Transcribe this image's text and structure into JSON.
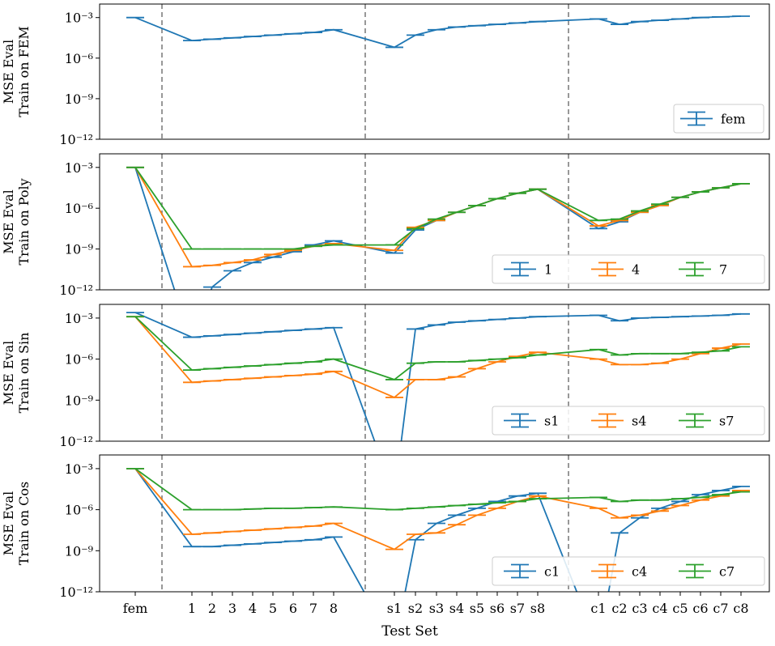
{
  "figure": {
    "xlabel": "Test Set",
    "x_tick_labels": [
      "fem",
      "1",
      "2",
      "3",
      "4",
      "5",
      "6",
      "7",
      "8",
      "s1",
      "s2",
      "s3",
      "s4",
      "s5",
      "s6",
      "s7",
      "s8",
      "c1",
      "c2",
      "c3",
      "c4",
      "c5",
      "c6",
      "c7",
      "c8"
    ],
    "y_tick_labels": [
      "10⁻³",
      "10⁻⁶",
      "10⁻⁹",
      "10⁻¹²"
    ],
    "separators_between": [
      "fem|1",
      "8|s1",
      "s8|c1"
    ]
  },
  "colors": {
    "blue": "#1f77b4",
    "orange": "#ff7f0e",
    "green": "#2ca02c",
    "separator": "#7f7f7f"
  },
  "chart_data": [
    {
      "type": "line",
      "title": "",
      "ylabel_line1": "MSE Eval",
      "ylabel_line2": "Train on FEM",
      "yscale": "log",
      "ylim_exponents": [
        -12,
        -2
      ],
      "x": [
        "fem",
        "1",
        "2",
        "3",
        "4",
        "5",
        "6",
        "7",
        "8",
        "s1",
        "s2",
        "s3",
        "s4",
        "s5",
        "s6",
        "s7",
        "s8",
        "c1",
        "c2",
        "c3",
        "c4",
        "c5",
        "c6",
        "c7",
        "c8"
      ],
      "legend": {
        "position": "lower-right",
        "columns": 1
      },
      "series": [
        {
          "name": "fem",
          "color": "blue",
          "log10_values": [
            -3.0,
            -4.7,
            -4.6,
            -4.5,
            -4.4,
            -4.3,
            -4.2,
            -4.1,
            -3.9,
            -5.2,
            -4.3,
            -3.9,
            -3.7,
            -3.6,
            -3.5,
            -3.4,
            -3.3,
            -3.1,
            -3.5,
            -3.3,
            -3.2,
            -3.1,
            -3.0,
            -2.95,
            -2.9
          ]
        }
      ]
    },
    {
      "type": "line",
      "title": "",
      "ylabel_line1": "MSE Eval",
      "ylabel_line2": "Train on Poly",
      "yscale": "log",
      "ylim_exponents": [
        -12,
        -2
      ],
      "x": [
        "fem",
        "1",
        "2",
        "3",
        "4",
        "5",
        "6",
        "7",
        "8",
        "s1",
        "s2",
        "s3",
        "s4",
        "s5",
        "s6",
        "s7",
        "s8",
        "c1",
        "c2",
        "c3",
        "c4",
        "c5",
        "c6",
        "c7",
        "c8"
      ],
      "legend": {
        "position": "lower-right",
        "columns": 3
      },
      "series": [
        {
          "name": "1",
          "color": "blue",
          "log10_values": [
            -3.0,
            -16,
            -11.8,
            -10.6,
            -10.0,
            -9.6,
            -9.2,
            -8.7,
            -8.4,
            -9.3,
            -7.6,
            -6.9,
            -6.3,
            -5.8,
            -5.3,
            -4.9,
            -4.6,
            -7.5,
            -7.0,
            -6.3,
            -5.8,
            -5.2,
            -4.8,
            -4.5,
            -4.2
          ]
        },
        {
          "name": "4",
          "color": "orange",
          "log10_values": [
            -3.0,
            -10.3,
            -10.2,
            -10.0,
            -9.8,
            -9.4,
            -9.1,
            -8.8,
            -8.6,
            -9.1,
            -7.4,
            -6.9,
            -6.3,
            -5.8,
            -5.3,
            -4.9,
            -4.6,
            -7.3,
            -6.9,
            -6.3,
            -5.8,
            -5.2,
            -4.8,
            -4.5,
            -4.2
          ]
        },
        {
          "name": "7",
          "color": "green",
          "log10_values": [
            -3.0,
            -9.0,
            -9.0,
            -9.0,
            -9.0,
            -9.0,
            -9.0,
            -8.8,
            -8.7,
            -8.7,
            -7.5,
            -6.8,
            -6.3,
            -5.8,
            -5.3,
            -4.9,
            -4.6,
            -6.9,
            -6.8,
            -6.2,
            -5.7,
            -5.2,
            -4.8,
            -4.5,
            -4.2
          ]
        }
      ]
    },
    {
      "type": "line",
      "title": "",
      "ylabel_line1": "MSE Eval",
      "ylabel_line2": "Train on Sin",
      "yscale": "log",
      "ylim_exponents": [
        -12,
        -2
      ],
      "x": [
        "fem",
        "1",
        "2",
        "3",
        "4",
        "5",
        "6",
        "7",
        "8",
        "s1",
        "s2",
        "s3",
        "s4",
        "s5",
        "s6",
        "s7",
        "s8",
        "c1",
        "c2",
        "c3",
        "c4",
        "c5",
        "c6",
        "c7",
        "c8"
      ],
      "legend": {
        "position": "lower-right",
        "columns": 3
      },
      "series": [
        {
          "name": "s1",
          "color": "blue",
          "log10_values": [
            -2.6,
            -4.4,
            -4.3,
            -4.2,
            -4.1,
            -4.0,
            -3.9,
            -3.8,
            -3.7,
            -16,
            -3.8,
            -3.5,
            -3.3,
            -3.2,
            -3.1,
            -3.0,
            -2.9,
            -2.8,
            -3.2,
            -3.0,
            -2.95,
            -2.9,
            -2.85,
            -2.8,
            -2.7
          ]
        },
        {
          "name": "s4",
          "color": "orange",
          "log10_values": [
            -2.9,
            -7.7,
            -7.6,
            -7.5,
            -7.4,
            -7.3,
            -7.2,
            -7.1,
            -6.9,
            -8.8,
            -7.5,
            -7.5,
            -7.3,
            -6.7,
            -6.2,
            -5.8,
            -5.5,
            -6.0,
            -6.4,
            -6.4,
            -6.3,
            -6.0,
            -5.6,
            -5.2,
            -4.9
          ]
        },
        {
          "name": "s7",
          "color": "green",
          "log10_values": [
            -2.9,
            -6.8,
            -6.7,
            -6.6,
            -6.5,
            -6.4,
            -6.3,
            -6.2,
            -6.0,
            -7.5,
            -6.3,
            -6.2,
            -6.2,
            -6.1,
            -6.0,
            -5.9,
            -5.7,
            -5.3,
            -5.7,
            -5.6,
            -5.6,
            -5.6,
            -5.5,
            -5.4,
            -5.1
          ]
        }
      ]
    },
    {
      "type": "line",
      "title": "",
      "ylabel_line1": "MSE Eval",
      "ylabel_line2": "Train on Cos",
      "yscale": "log",
      "ylim_exponents": [
        -12,
        -2
      ],
      "x": [
        "fem",
        "1",
        "2",
        "3",
        "4",
        "5",
        "6",
        "7",
        "8",
        "s1",
        "s2",
        "s3",
        "s4",
        "s5",
        "s6",
        "s7",
        "s8",
        "c1",
        "c2",
        "c3",
        "c4",
        "c5",
        "c6",
        "c7",
        "c8"
      ],
      "legend": {
        "position": "lower-right",
        "columns": 3
      },
      "series": [
        {
          "name": "c1",
          "color": "blue",
          "log10_values": [
            -3.0,
            -8.7,
            -8.7,
            -8.6,
            -8.5,
            -8.4,
            -8.3,
            -8.2,
            -8.0,
            -16,
            -8.2,
            -7.0,
            -6.4,
            -5.9,
            -5.4,
            -5.0,
            -4.8,
            -16,
            -7.7,
            -6.6,
            -5.9,
            -5.4,
            -4.9,
            -4.6,
            -4.3
          ]
        },
        {
          "name": "c4",
          "color": "orange",
          "log10_values": [
            -3.0,
            -7.8,
            -7.7,
            -7.6,
            -7.5,
            -7.4,
            -7.3,
            -7.2,
            -7.0,
            -8.9,
            -7.8,
            -7.7,
            -7.1,
            -6.4,
            -5.9,
            -5.4,
            -5.0,
            -5.9,
            -6.6,
            -6.4,
            -6.1,
            -5.7,
            -5.3,
            -5.0,
            -4.6
          ]
        },
        {
          "name": "c7",
          "color": "green",
          "log10_values": [
            -3.0,
            -6.0,
            -6.0,
            -6.0,
            -5.95,
            -5.9,
            -5.9,
            -5.85,
            -5.8,
            -6.0,
            -5.9,
            -5.8,
            -5.7,
            -5.6,
            -5.5,
            -5.4,
            -5.2,
            -5.1,
            -5.4,
            -5.3,
            -5.3,
            -5.2,
            -5.1,
            -4.9,
            -4.7
          ]
        }
      ]
    }
  ]
}
